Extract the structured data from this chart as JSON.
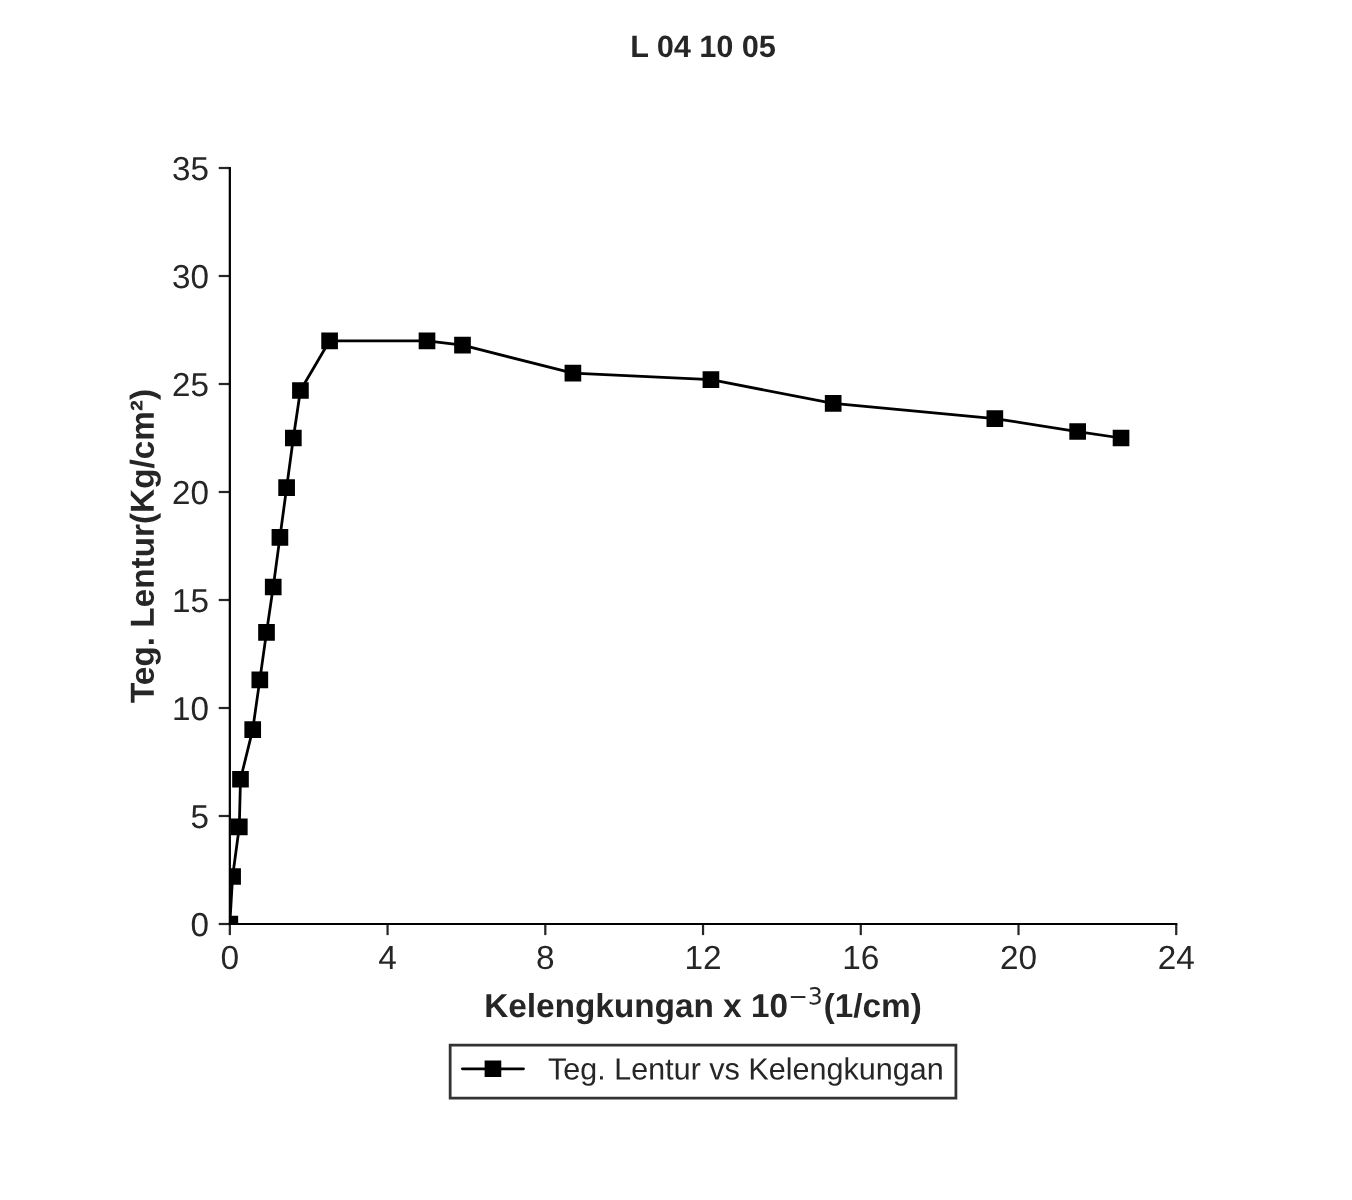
{
  "chart_data": {
    "type": "line",
    "title": "L 04 10 05",
    "xlabel": "Kelengkungan x 10$^{−3}$(1/cm)",
    "ylabel": "Teg. Lentur(Kg/cm²)",
    "series": [
      {
        "name": "Teg. Lentur vs Kelengkungan",
        "color": "#000000",
        "x": [
          0,
          0.07,
          0.24,
          0.27,
          0.58,
          0.76,
          0.93,
          1.1,
          1.27,
          1.44,
          1.61,
          1.79,
          2.53,
          5.0,
          5.9,
          8.7,
          12.2,
          15.3,
          19.4,
          21.5,
          22.6
        ],
        "values": [
          0,
          2.2,
          4.5,
          6.7,
          9.0,
          11.3,
          13.5,
          15.6,
          17.9,
          20.2,
          22.5,
          24.7,
          27.0,
          27.0,
          26.8,
          25.5,
          25.2,
          24.1,
          23.4,
          22.8,
          22.5
        ]
      }
    ],
    "xlim": [
      0,
      24
    ],
    "xticks": [
      0,
      4,
      8,
      12,
      16,
      20,
      24
    ],
    "ylim": [
      0,
      35
    ],
    "yticks": [
      0,
      5,
      10,
      15,
      20,
      25,
      30,
      35
    ],
    "marker": "square",
    "line_style": "solid",
    "legend": "bottom",
    "grid": false
  }
}
